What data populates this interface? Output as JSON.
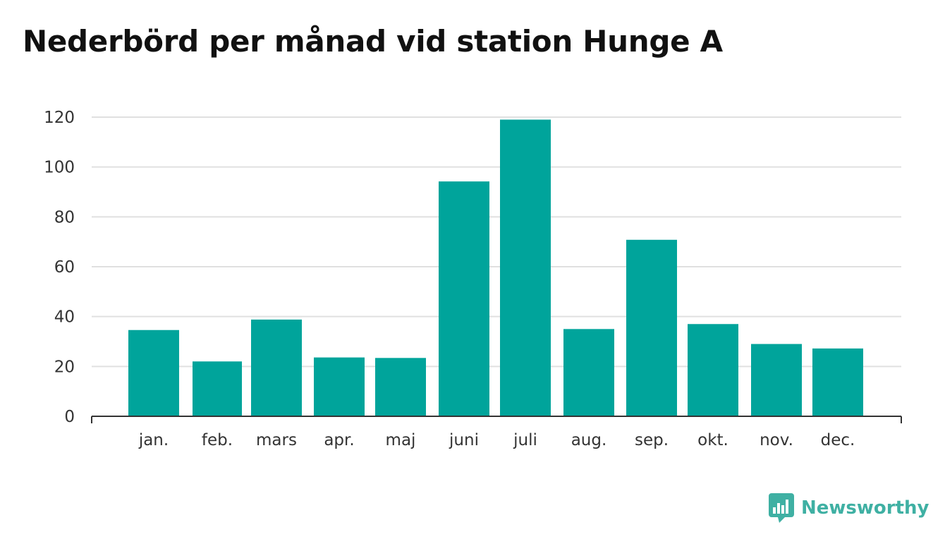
{
  "title": "Nederbörd per månad vid station Hunge A",
  "brand": {
    "name": "Newsworthy",
    "color": "#3fb0a3",
    "icon": "chart-bubble-logo-icon"
  },
  "colors": {
    "bar": "#00a49b",
    "grid": "#e0e0e0",
    "axis": "#333333"
  },
  "chart_data": {
    "type": "bar",
    "categories": [
      "jan.",
      "feb.",
      "mars",
      "apr.",
      "maj",
      "juni",
      "juli",
      "aug.",
      "sep.",
      "okt.",
      "nov.",
      "dec."
    ],
    "values": [
      34.6,
      22.0,
      38.8,
      23.6,
      23.4,
      94.2,
      119.0,
      35.0,
      70.8,
      37.0,
      29.0,
      27.2
    ],
    "ylim": [
      0,
      120
    ],
    "yticks": [
      0,
      20,
      40,
      60,
      80,
      100,
      120
    ],
    "grid": true,
    "legend": "none",
    "xlabel": "",
    "ylabel": ""
  }
}
